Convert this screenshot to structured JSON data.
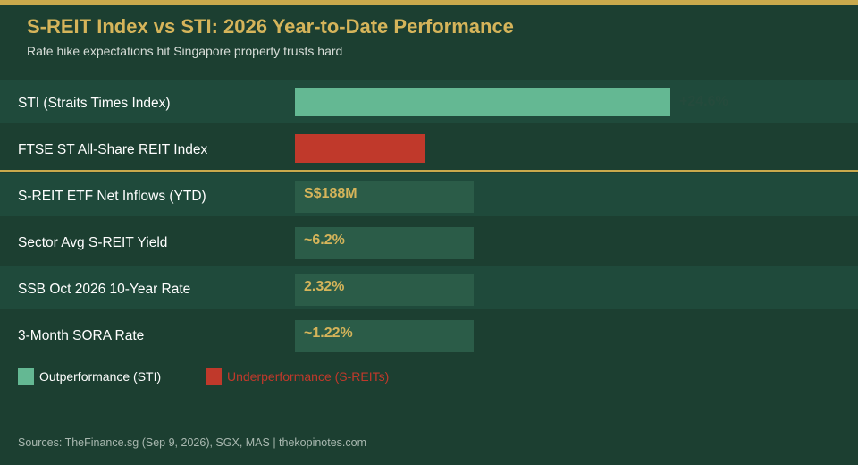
{
  "header": {
    "title": "S-REIT Index vs STI: 2026 Year-to-Date Performance",
    "subtitle": "Rate hike expectations hit Singapore property trusts hard"
  },
  "colors": {
    "accent": "#c9a94c",
    "background": "#1c3f31",
    "positive": "#64b893",
    "negative": "#c0392b",
    "stat_text": "#d5b45a",
    "value_label": "#254a3c"
  },
  "chart_data": {
    "type": "bar",
    "orientation": "horizontal",
    "categories": [
      "STI (Straits Times Index)",
      "FTSE ST All-Share REIT Index"
    ],
    "series": [
      {
        "values": [
          24.6,
          -8.5
        ],
        "value_labels": [
          "+24.6%",
          ""
        ],
        "colors": [
          "#64b893",
          "#c0392b"
        ]
      }
    ],
    "title": "S-REIT Index vs STI: 2026 Year-to-Date Performance",
    "subtitle": "Rate hike expectations hit Singapore property trusts hard",
    "xlabel": "",
    "ylabel": "",
    "grid": false,
    "legend_position": "bottom-left"
  },
  "stats": [
    {
      "label": "S-REIT ETF Net Inflows (YTD)",
      "value": "S$188M"
    },
    {
      "label": "Sector Avg S-REIT Yield",
      "value": "~6.2%"
    },
    {
      "label": "SSB Oct 2026 10-Year Rate",
      "value": "2.32%"
    },
    {
      "label": "3-Month SORA Rate",
      "value": "~1.22%"
    }
  ],
  "legend": [
    {
      "label": "Outperformance (STI)",
      "color": "#64b893",
      "text_color": "#ffffff"
    },
    {
      "label": "Underperformance (S-REITs)",
      "color": "#c0392b",
      "text_color": "#c0392b"
    }
  ],
  "footer": {
    "sources": "Sources: TheFinance.sg (Sep 9, 2026), SGX, MAS  |  thekopinotes.com"
  }
}
